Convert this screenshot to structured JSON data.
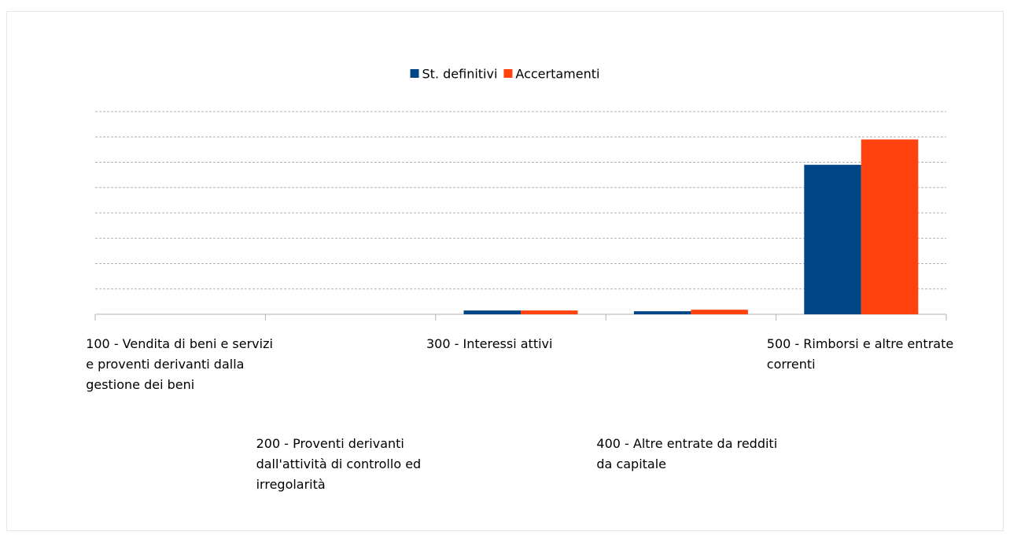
{
  "chart_data": {
    "type": "bar",
    "categories": [
      "100 - Vendita di beni e servizi e proventi derivanti dalla gestione dei beni",
      "200 - Proventi derivanti dall'attività di controllo ed irregolarità",
      "300 - Interessi attivi",
      "400 - Altre entrate da redditi da capitale",
      "500 - Rimborsi e altre entrate correnti"
    ],
    "series": [
      {
        "name": "St. definitivi",
        "color": "#004586",
        "values": [
          0,
          0,
          0.15,
          0.12,
          5.9
        ]
      },
      {
        "name": "Accertamenti",
        "color": "#ff420e",
        "values": [
          0,
          0,
          0.15,
          0.18,
          6.9
        ]
      }
    ],
    "ylim": [
      0,
      8
    ],
    "yticks": [
      0,
      1,
      2,
      3,
      4,
      5,
      6,
      7,
      8
    ],
    "grid": true,
    "legend": "top"
  }
}
